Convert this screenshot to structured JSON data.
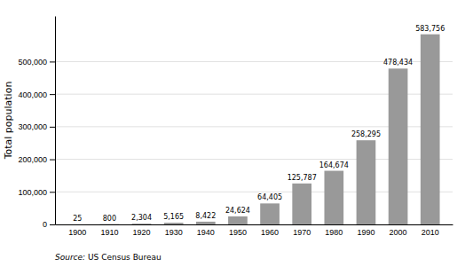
{
  "chart_data": {
    "type": "bar",
    "y_label": "Total population",
    "annotations": [
      "Source:",
      " US Census Bureau"
    ],
    "categories": [
      "1900",
      "1910",
      "1920",
      "1930",
      "1940",
      "1950",
      "1960",
      "1970",
      "1980",
      "1990",
      "2000",
      "2010"
    ],
    "values": [
      25,
      800,
      2304,
      5165,
      8422,
      24624,
      64405,
      125787,
      164674,
      258295,
      478434,
      583756
    ],
    "value_labels": [
      "25",
      "800",
      "2,304",
      "5,165",
      "8,422",
      "24,624",
      "64,405",
      "125,787",
      "164,674",
      "258,295",
      "478,434",
      "583,756"
    ],
    "data_labels": true,
    "color": "#999999",
    "ylim": [
      0,
      640000
    ],
    "yticks": [
      0,
      {
        "value": 100000,
        "label": "100,000"
      },
      {
        "value": 200000,
        "label": "200,000"
      },
      {
        "value": 300000,
        "label": "300,000"
      },
      {
        "value": 400000,
        "label": "400,000"
      },
      {
        "value": 500000,
        "label": "500,000"
      }
    ],
    "grid": true
  }
}
